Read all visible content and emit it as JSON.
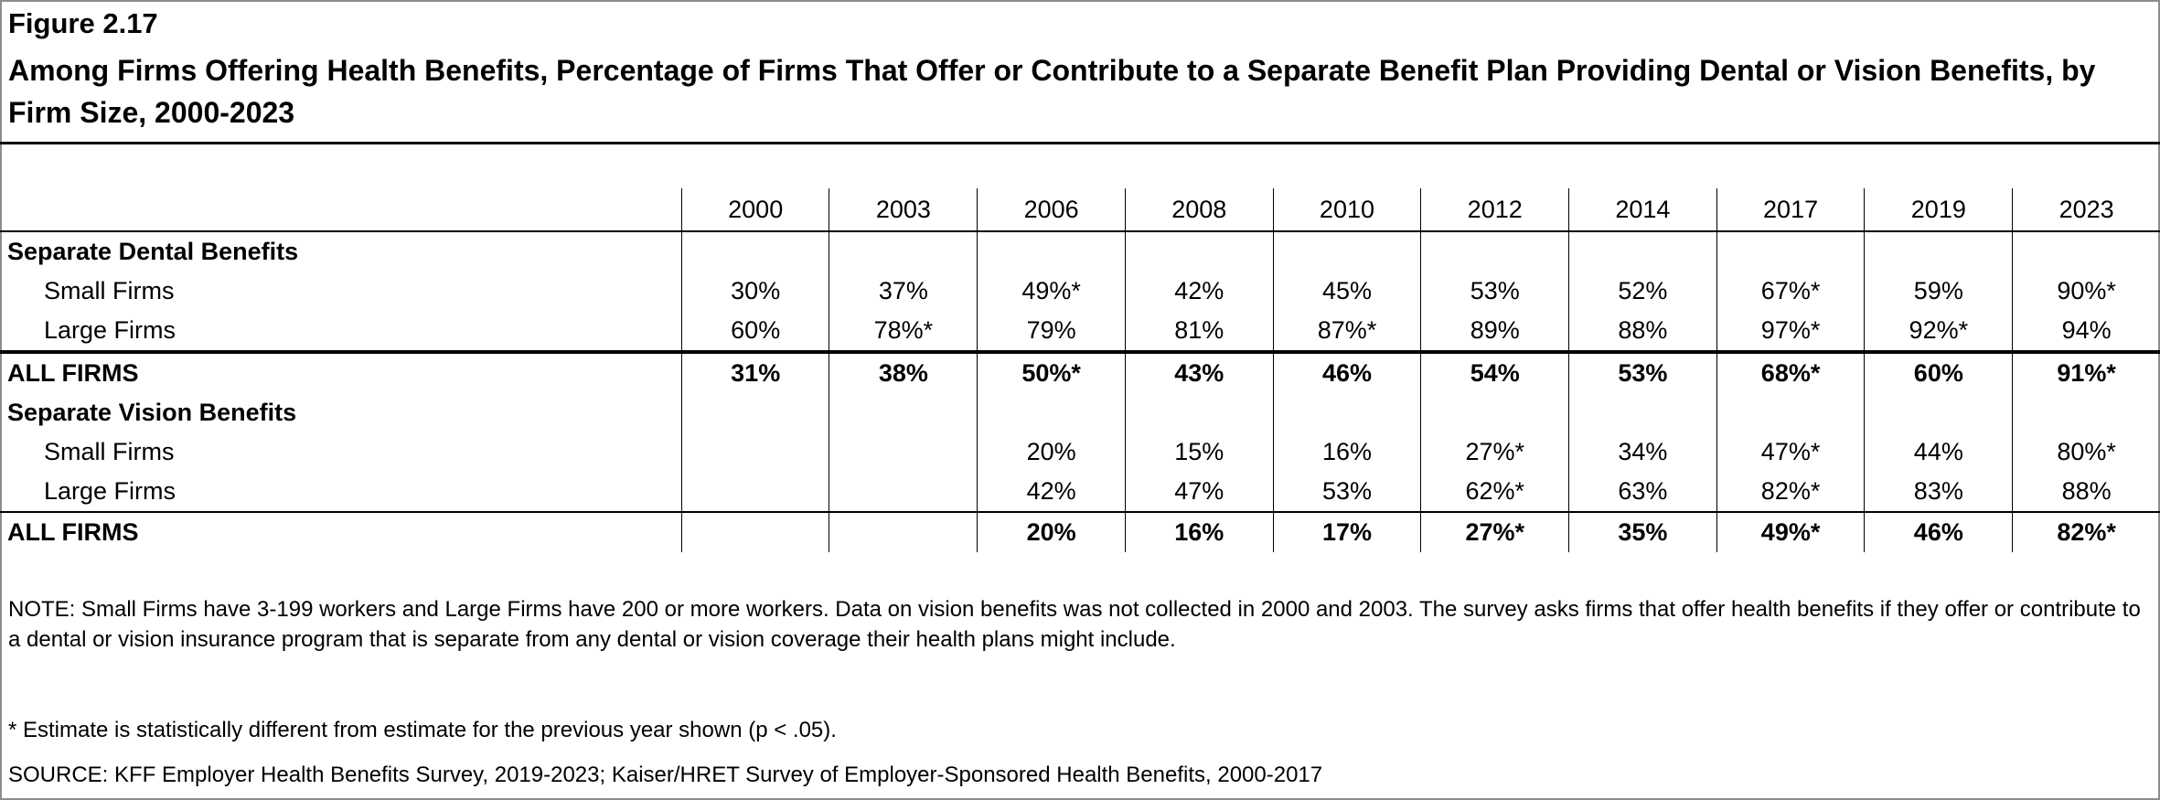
{
  "figure_number": "Figure 2.17",
  "title": "Among Firms Offering Health Benefits, Percentage of Firms That Offer or Contribute to a Separate Benefit Plan Providing Dental or Vision Benefits, by Firm Size, 2000-2023",
  "table": {
    "years": [
      "2000",
      "2003",
      "2006",
      "2008",
      "2010",
      "2012",
      "2014",
      "2017",
      "2019",
      "2023"
    ],
    "sections": [
      {
        "label": "Separate Dental Benefits",
        "rows": [
          {
            "label": "Small Firms",
            "values": [
              "30%",
              "37%",
              "49%*",
              "42%",
              "45%",
              "53%",
              "52%",
              "67%*",
              "59%",
              "90%*"
            ]
          },
          {
            "label": "Large Firms",
            "values": [
              "60%",
              "78%*",
              "79%",
              "81%",
              "87%*",
              "89%",
              "88%",
              "97%*",
              "92%*",
              "94%"
            ]
          }
        ],
        "total": {
          "label": "ALL FIRMS",
          "values": [
            "31%",
            "38%",
            "50%*",
            "43%",
            "46%",
            "54%",
            "53%",
            "68%*",
            "60%",
            "91%*"
          ]
        }
      },
      {
        "label": "Separate Vision Benefits",
        "rows": [
          {
            "label": "Small Firms",
            "values": [
              "",
              "",
              "20%",
              "15%",
              "16%",
              "27%*",
              "34%",
              "47%*",
              "44%",
              "80%*"
            ]
          },
          {
            "label": "Large Firms",
            "values": [
              "",
              "",
              "42%",
              "47%",
              "53%",
              "62%*",
              "63%",
              "82%*",
              "83%",
              "88%"
            ]
          }
        ],
        "total": {
          "label": "ALL FIRMS",
          "values": [
            "",
            "",
            "20%",
            "16%",
            "17%",
            "27%*",
            "35%",
            "49%*",
            "46%",
            "82%*"
          ]
        }
      }
    ]
  },
  "note": "NOTE: Small Firms have 3-199 workers and Large Firms have 200 or more workers. Data on vision benefits was not collected in 2000 and 2003. The survey asks firms that offer health benefits if they offer or contribute to a dental or vision insurance program that is separate from any dental or vision coverage their health plans might include.",
  "footnote": " * Estimate is statistically different from estimate for the previous year shown (p < .05).",
  "source": "SOURCE: KFF Employer Health Benefits Survey, 2019-2023; Kaiser/HRET Survey of Employer-Sponsored Health Benefits, 2000-2017"
}
